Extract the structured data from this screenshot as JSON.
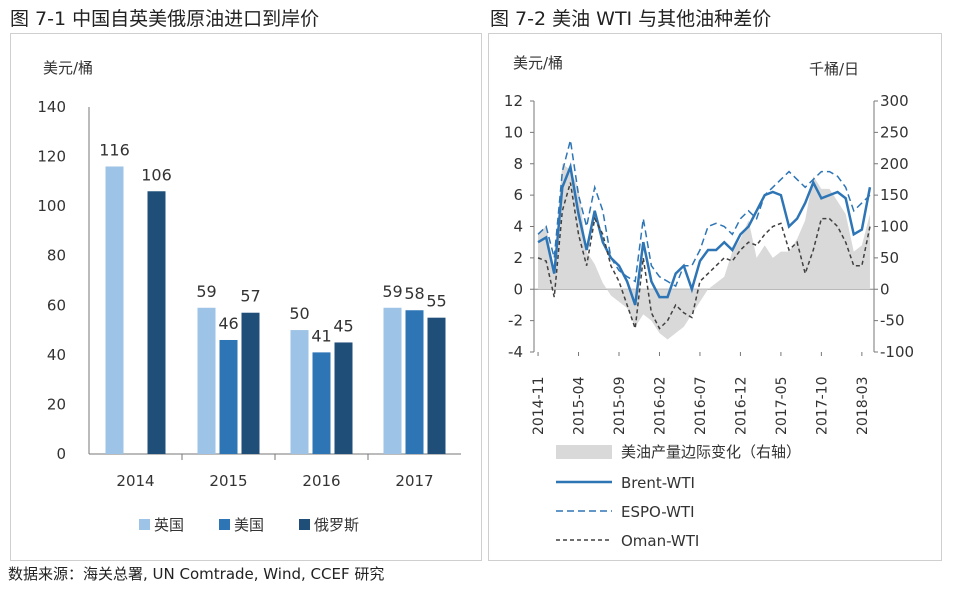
{
  "figures": {
    "left_title": "图 7-1  中国自英美俄原油进口到岸价",
    "right_title": "图 7-2  美油 WTI 与其他油种差价"
  },
  "source": "数据来源：海关总署, UN Comtrade, Wind, CCEF 研究",
  "chart_data": [
    {
      "type": "bar",
      "title": "图 7-1  中国自英美俄原油进口到岸价",
      "ylabel": "美元/桶",
      "ylim": [
        0,
        140
      ],
      "yticks": [
        "0",
        "20",
        "40",
        "60",
        "80",
        "100",
        "120",
        "140"
      ],
      "categories": [
        "2014",
        "2015",
        "2016",
        "2017"
      ],
      "series": [
        {
          "name": "英国",
          "color": "#9dc3e6",
          "values": [
            116,
            59,
            50,
            59
          ],
          "labels": [
            "116",
            "59",
            "50",
            "59"
          ]
        },
        {
          "name": "美国",
          "color": "#2e75b6",
          "values": [
            null,
            46,
            41,
            58
          ],
          "labels": [
            "",
            "46",
            "41",
            "58"
          ]
        },
        {
          "name": "俄罗斯",
          "color": "#1f4e79",
          "values": [
            106,
            57,
            45,
            55
          ],
          "labels": [
            "106",
            "57",
            "45",
            "55"
          ]
        }
      ],
      "legend_position": "bottom"
    },
    {
      "type": "line",
      "title": "图 7-2  美油 WTI 与其他油种差价",
      "ylabel_left": "美元/桶",
      "ylabel_right": "千桶/日",
      "ylim_left": [
        -4,
        12
      ],
      "ylim_right": [
        -100,
        300
      ],
      "yticks_left": [
        "-4",
        "-2",
        "0",
        "2",
        "4",
        "6",
        "8",
        "10",
        "12"
      ],
      "yticks_right": [
        "-100",
        "-50",
        "0",
        "50",
        "100",
        "150",
        "200",
        "250",
        "300"
      ],
      "xticks": [
        "2014-11",
        "2015-04",
        "2015-09",
        "2016-02",
        "2016-07",
        "2016-12",
        "2017-05",
        "2017-10",
        "2018-03"
      ],
      "x_start_index": 0,
      "x_count": 42,
      "series": [
        {
          "name": "美油产量边际变化（右轴）",
          "kind": "area",
          "axis": "right",
          "color": "#d9d9d9",
          "values": [
            90,
            100,
            30,
            200,
            190,
            160,
            60,
            40,
            10,
            -10,
            -20,
            -30,
            -60,
            -40,
            -50,
            -70,
            -80,
            -70,
            -60,
            -40,
            -20,
            0,
            10,
            20,
            60,
            80,
            110,
            50,
            70,
            50,
            60,
            60,
            80,
            110,
            180,
            160,
            160,
            140,
            120,
            60,
            70,
            120
          ]
        },
        {
          "name": "Brent-WTI",
          "kind": "line",
          "axis": "left",
          "color": "#2e75b6",
          "dash": "solid",
          "values": [
            3.0,
            3.3,
            1.0,
            6.5,
            7.8,
            4.8,
            2.5,
            5.0,
            3.0,
            2.0,
            1.5,
            0.5,
            -1.0,
            3.0,
            0.5,
            -0.5,
            -0.5,
            1.0,
            1.5,
            0,
            1.8,
            2.5,
            2.5,
            3.0,
            2.5,
            3.5,
            4.0,
            5.0,
            6.0,
            6.2,
            6.0,
            4.0,
            4.5,
            5.5,
            6.8,
            5.8,
            6.0,
            6.2,
            5.8,
            3.5,
            3.8,
            6.5
          ]
        },
        {
          "name": "ESPO-WTI",
          "kind": "line",
          "axis": "left",
          "color": "#2e75b6",
          "dash": "dash",
          "values": [
            3.5,
            4.0,
            2.0,
            7.5,
            9.5,
            6.0,
            4.0,
            6.5,
            5.0,
            2.0,
            1.2,
            0.8,
            0.5,
            4.5,
            1.5,
            0.8,
            0.5,
            0.2,
            1.5,
            1.5,
            2.5,
            4.0,
            4.2,
            4.0,
            3.5,
            4.5,
            5.0,
            4.5,
            6.0,
            6.5,
            7.0,
            7.5,
            7.0,
            6.5,
            7.0,
            7.5,
            7.5,
            7.2,
            6.5,
            5.0,
            5.5,
            6.0
          ]
        },
        {
          "name": "Oman-WTI",
          "kind": "line",
          "axis": "left",
          "color": "#404040",
          "dash": "dot",
          "values": [
            2.0,
            1.8,
            -0.5,
            5.0,
            6.8,
            3.5,
            1.5,
            4.5,
            3.5,
            1.5,
            0.5,
            -1.0,
            -2.5,
            2.0,
            -1.5,
            -2.5,
            -2.0,
            -1.0,
            -1.5,
            -1.8,
            0.5,
            1.0,
            1.5,
            2.0,
            1.8,
            2.5,
            3.0,
            2.8,
            3.5,
            4.0,
            4.2,
            2.5,
            3.0,
            1.0,
            2.5,
            4.5,
            4.5,
            4.0,
            3.0,
            1.5,
            1.5,
            4.0
          ]
        }
      ],
      "legend_position": "bottom"
    }
  ]
}
